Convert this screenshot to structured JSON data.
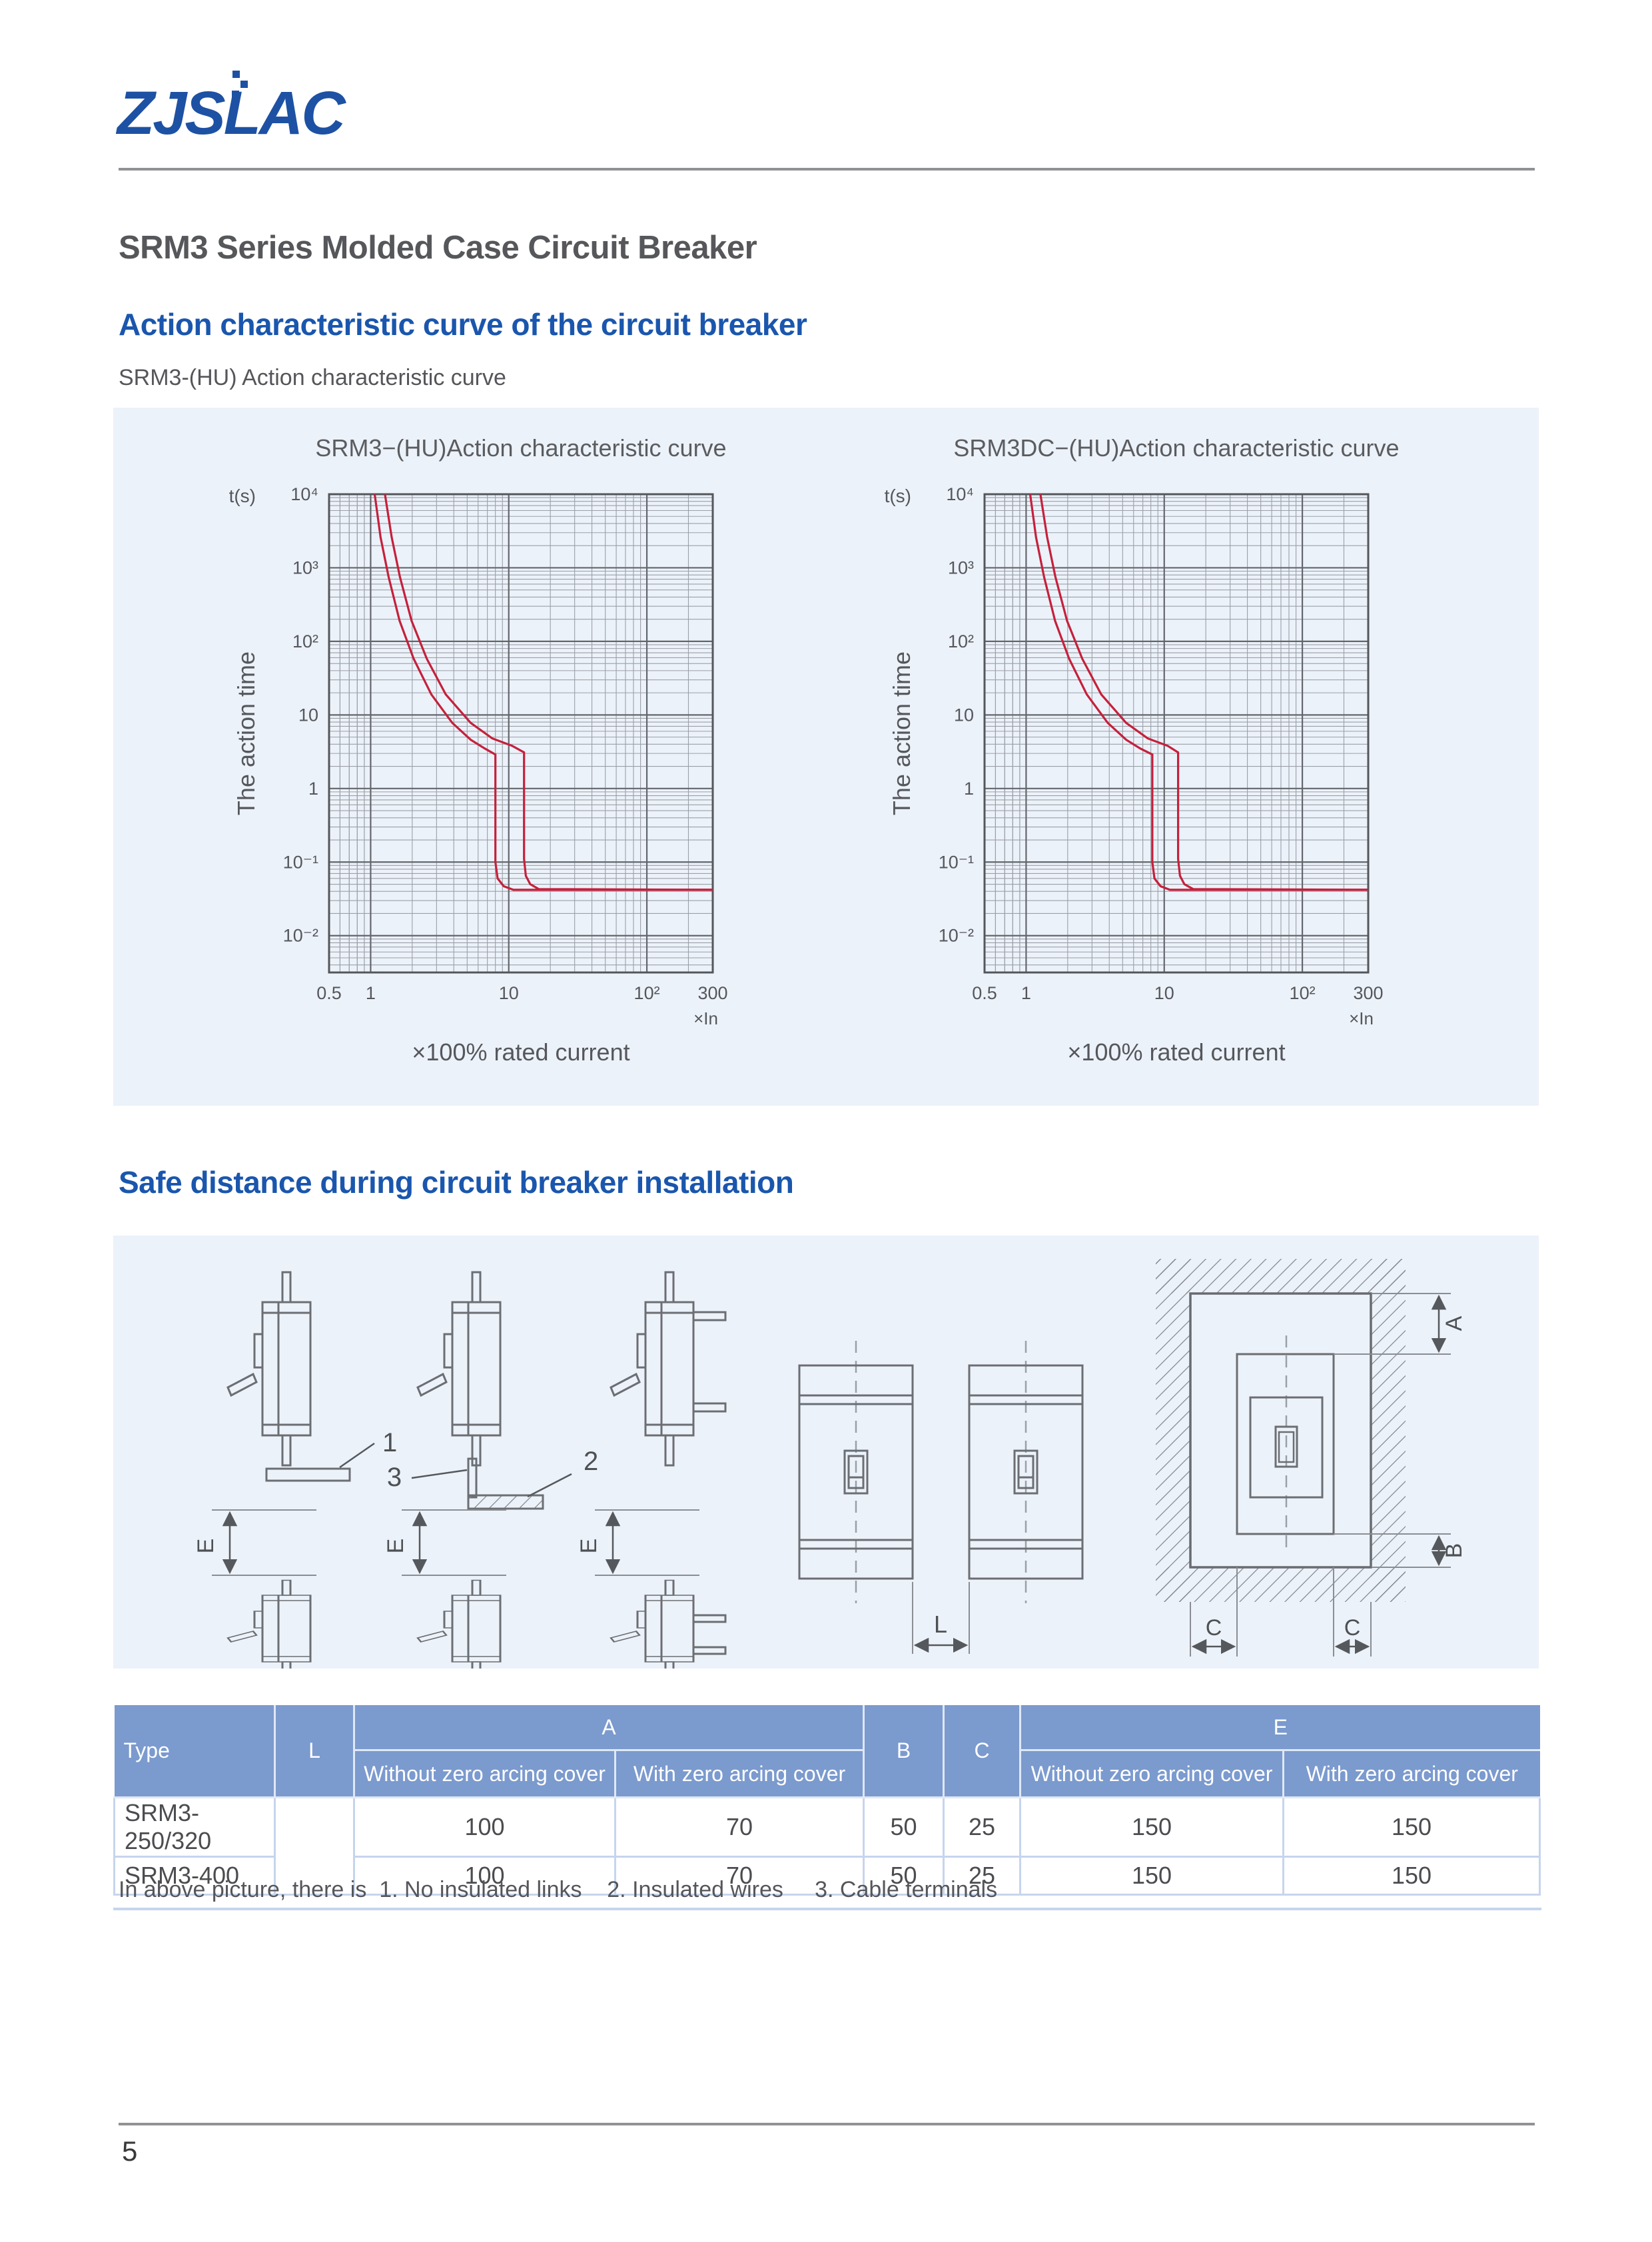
{
  "page": {
    "number": "5"
  },
  "header": {
    "logo": "ZJSLAC",
    "title": "SRM3 Series Molded Case Circuit Breaker"
  },
  "sections": {
    "curves_heading": "Action characteristic curve of the circuit breaker",
    "curves_subtitle": "SRM3-(HU) Action characteristic curve",
    "install_heading": "Safe distance during circuit breaker installation"
  },
  "chart_data": [
    {
      "type": "line",
      "title": "SRM3−(HU)Action characteristic curve",
      "ylabel": "The action time",
      "y_unit": "t(s)",
      "xlabel": "×100%  rated current",
      "x_unit": "×In",
      "grid": "log-log",
      "xlim": [
        0.5,
        300
      ],
      "ylim": [
        0.00316,
        10000
      ],
      "x_ticks": [
        {
          "v": 0.5,
          "label": "0.5"
        },
        {
          "v": 1,
          "label": "1"
        },
        {
          "v": 10,
          "label": "10"
        },
        {
          "v": 100,
          "label": "10²"
        },
        {
          "v": 300,
          "label": "300"
        }
      ],
      "y_ticks": [
        {
          "v": 10000,
          "label": "10⁴"
        },
        {
          "v": 1000,
          "label": "10³"
        },
        {
          "v": 100,
          "label": "10²"
        },
        {
          "v": 10,
          "label": "10"
        },
        {
          "v": 1,
          "label": "1"
        },
        {
          "v": 0.1,
          "label": "10⁻¹"
        },
        {
          "v": 0.01,
          "label": "10⁻²"
        }
      ],
      "series": [
        {
          "name": "tripping time lower boundary",
          "color": "#c5203c",
          "points": [
            [
              1.07,
              10000
            ],
            [
              1.18,
              2600
            ],
            [
              1.35,
              750
            ],
            [
              1.62,
              190
            ],
            [
              2.05,
              58
            ],
            [
              2.75,
              19
            ],
            [
              3.9,
              7.8
            ],
            [
              5.3,
              4.6
            ],
            [
              6.7,
              3.5
            ],
            [
              8,
              2.9
            ],
            [
              8,
              0.1
            ],
            [
              8.3,
              0.06
            ],
            [
              9.2,
              0.047
            ],
            [
              10.8,
              0.042
            ],
            [
              300,
              0.042
            ]
          ]
        },
        {
          "name": "tripping time upper boundary",
          "color": "#c5203c",
          "points": [
            [
              1.27,
              10000
            ],
            [
              1.42,
              2600
            ],
            [
              1.63,
              750
            ],
            [
              1.98,
              190
            ],
            [
              2.55,
              58
            ],
            [
              3.5,
              19
            ],
            [
              5.3,
              7.8
            ],
            [
              7.6,
              4.8
            ],
            [
              10.6,
              3.8
            ],
            [
              12.9,
              3.1
            ],
            [
              12.9,
              0.11
            ],
            [
              13.3,
              0.065
            ],
            [
              14.3,
              0.05
            ],
            [
              16.5,
              0.043
            ],
            [
              300,
              0.042
            ]
          ]
        }
      ]
    },
    {
      "type": "line",
      "title": "SRM3DC−(HU)Action characteristic curve",
      "ylabel": "The action time",
      "y_unit": "t(s)",
      "xlabel": "×100%  rated current",
      "x_unit": "×In",
      "grid": "log-log",
      "xlim": [
        0.5,
        300
      ],
      "ylim": [
        0.00316,
        10000
      ],
      "x_ticks": [
        {
          "v": 0.5,
          "label": "0.5"
        },
        {
          "v": 1,
          "label": "1"
        },
        {
          "v": 10,
          "label": "10"
        },
        {
          "v": 100,
          "label": "10²"
        },
        {
          "v": 300,
          "label": "300"
        }
      ],
      "y_ticks": [
        {
          "v": 10000,
          "label": "10⁴"
        },
        {
          "v": 1000,
          "label": "10³"
        },
        {
          "v": 100,
          "label": "10²"
        },
        {
          "v": 10,
          "label": "10"
        },
        {
          "v": 1,
          "label": "1"
        },
        {
          "v": 0.1,
          "label": "10⁻¹"
        },
        {
          "v": 0.01,
          "label": "10⁻²"
        }
      ],
      "series": [
        {
          "name": "tripping time lower boundary",
          "color": "#c5203c",
          "points": [
            [
              1.07,
              10000
            ],
            [
              1.18,
              2600
            ],
            [
              1.35,
              750
            ],
            [
              1.62,
              190
            ],
            [
              2.05,
              58
            ],
            [
              2.75,
              19
            ],
            [
              3.9,
              7.8
            ],
            [
              5.3,
              4.6
            ],
            [
              6.7,
              3.5
            ],
            [
              8.2,
              2.9
            ],
            [
              8.2,
              0.1
            ],
            [
              8.5,
              0.06
            ],
            [
              9.4,
              0.047
            ],
            [
              11,
              0.042
            ],
            [
              300,
              0.042
            ]
          ]
        },
        {
          "name": "tripping time upper boundary",
          "color": "#c5203c",
          "points": [
            [
              1.27,
              10000
            ],
            [
              1.42,
              2600
            ],
            [
              1.63,
              750
            ],
            [
              1.98,
              190
            ],
            [
              2.55,
              58
            ],
            [
              3.5,
              19
            ],
            [
              5.3,
              7.8
            ],
            [
              7.6,
              4.8
            ],
            [
              10.6,
              3.8
            ],
            [
              12.6,
              3.1
            ],
            [
              12.6,
              0.11
            ],
            [
              13,
              0.065
            ],
            [
              14,
              0.05
            ],
            [
              16.2,
              0.043
            ],
            [
              300,
              0.042
            ]
          ]
        }
      ]
    }
  ],
  "install": {
    "labels": {
      "e": "E",
      "l": "L",
      "a": "A",
      "b": "B",
      "c": "C",
      "n1": "1",
      "n2": "2",
      "n3": "3"
    }
  },
  "table": {
    "col_type": "Type",
    "col_l": "L",
    "col_a": "A",
    "col_b": "B",
    "col_c": "C",
    "col_e": "E",
    "sub_without": "Without zero arcing cover",
    "sub_with": "With zero arcing cover",
    "rows": [
      {
        "type": "SRM3-250/320",
        "l": "",
        "a_without": "100",
        "a_with": "70",
        "b": "50",
        "c": "25",
        "e_without": "150",
        "e_with": "150"
      },
      {
        "type": "SRM3-400",
        "l": "",
        "a_without": "100",
        "a_with": "70",
        "b": "50",
        "c": "25",
        "e_without": "150",
        "e_with": "150"
      }
    ],
    "note": "In above picture, there is  1. No insulated links    2. Insulated wires     3. Cable terminals"
  }
}
